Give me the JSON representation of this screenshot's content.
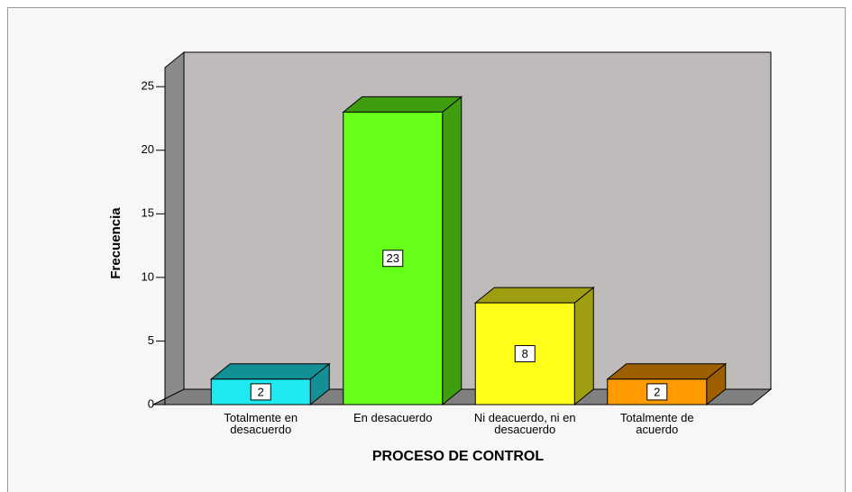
{
  "chart_data": {
    "type": "bar3d",
    "categories": [
      "Totalmente en desacuerdo",
      "En desacuerdo",
      "Ni deacuerdo, ni en desacuerdo",
      "Totalmente de acuerdo"
    ],
    "values": [
      2,
      23,
      8,
      2
    ],
    "colors": [
      "#1ee8f0",
      "#66ff1a",
      "#ffff1a",
      "#ff9a00"
    ],
    "ylabel": "Frecuencia",
    "xlabel": "PROCESO DE CONTROL",
    "ylim": [
      0,
      26.5
    ],
    "yticks": [
      0,
      5,
      10,
      15,
      20,
      25
    ]
  }
}
